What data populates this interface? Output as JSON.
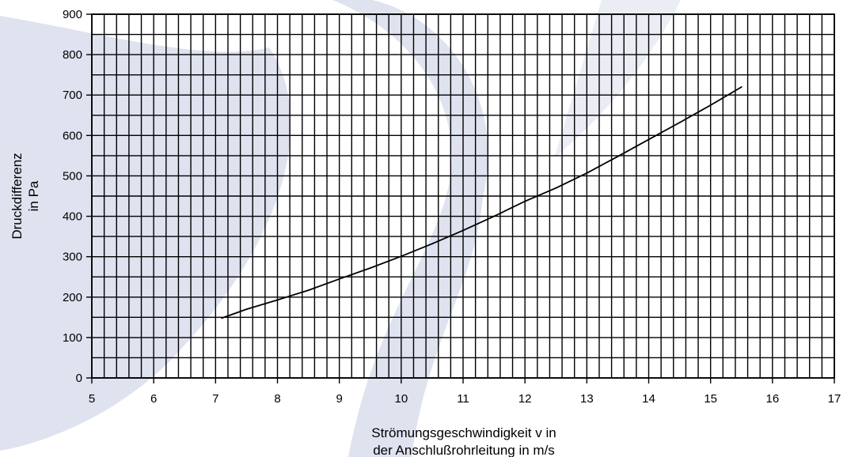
{
  "colors": {
    "background": "#ffffff",
    "grid": "#000000",
    "line": "#000000",
    "watermark": "#c5cbe2"
  },
  "chart_data": {
    "type": "line",
    "title": "",
    "xlabel_lines": [
      "Strömungsgeschwindigkeit v in",
      "der Anschlußrohrleitung in m/s"
    ],
    "ylabel_lines": [
      "Druckdifferenz",
      "in Pa"
    ],
    "xlim": [
      5,
      17
    ],
    "ylim": [
      0,
      900
    ],
    "x_ticks": [
      5,
      6,
      7,
      8,
      9,
      10,
      11,
      12,
      13,
      14,
      15,
      16,
      17
    ],
    "y_ticks": [
      0,
      100,
      200,
      300,
      400,
      500,
      600,
      700,
      800,
      900
    ],
    "grid": true,
    "x_minor_step": 0.2,
    "y_minor_step": 50,
    "series": [
      {
        "x": [
          7.1,
          7.5,
          8.0,
          8.5,
          9.0,
          9.5,
          10.0,
          10.5,
          11.0,
          11.5,
          12.0,
          12.5,
          13.0,
          13.5,
          14.0,
          14.5,
          15.0,
          15.5
        ],
        "y": [
          148,
          170,
          193,
          217,
          245,
          272,
          301,
          332,
          365,
          400,
          437,
          470,
          507,
          548,
          590,
          632,
          675,
          720
        ]
      }
    ]
  }
}
